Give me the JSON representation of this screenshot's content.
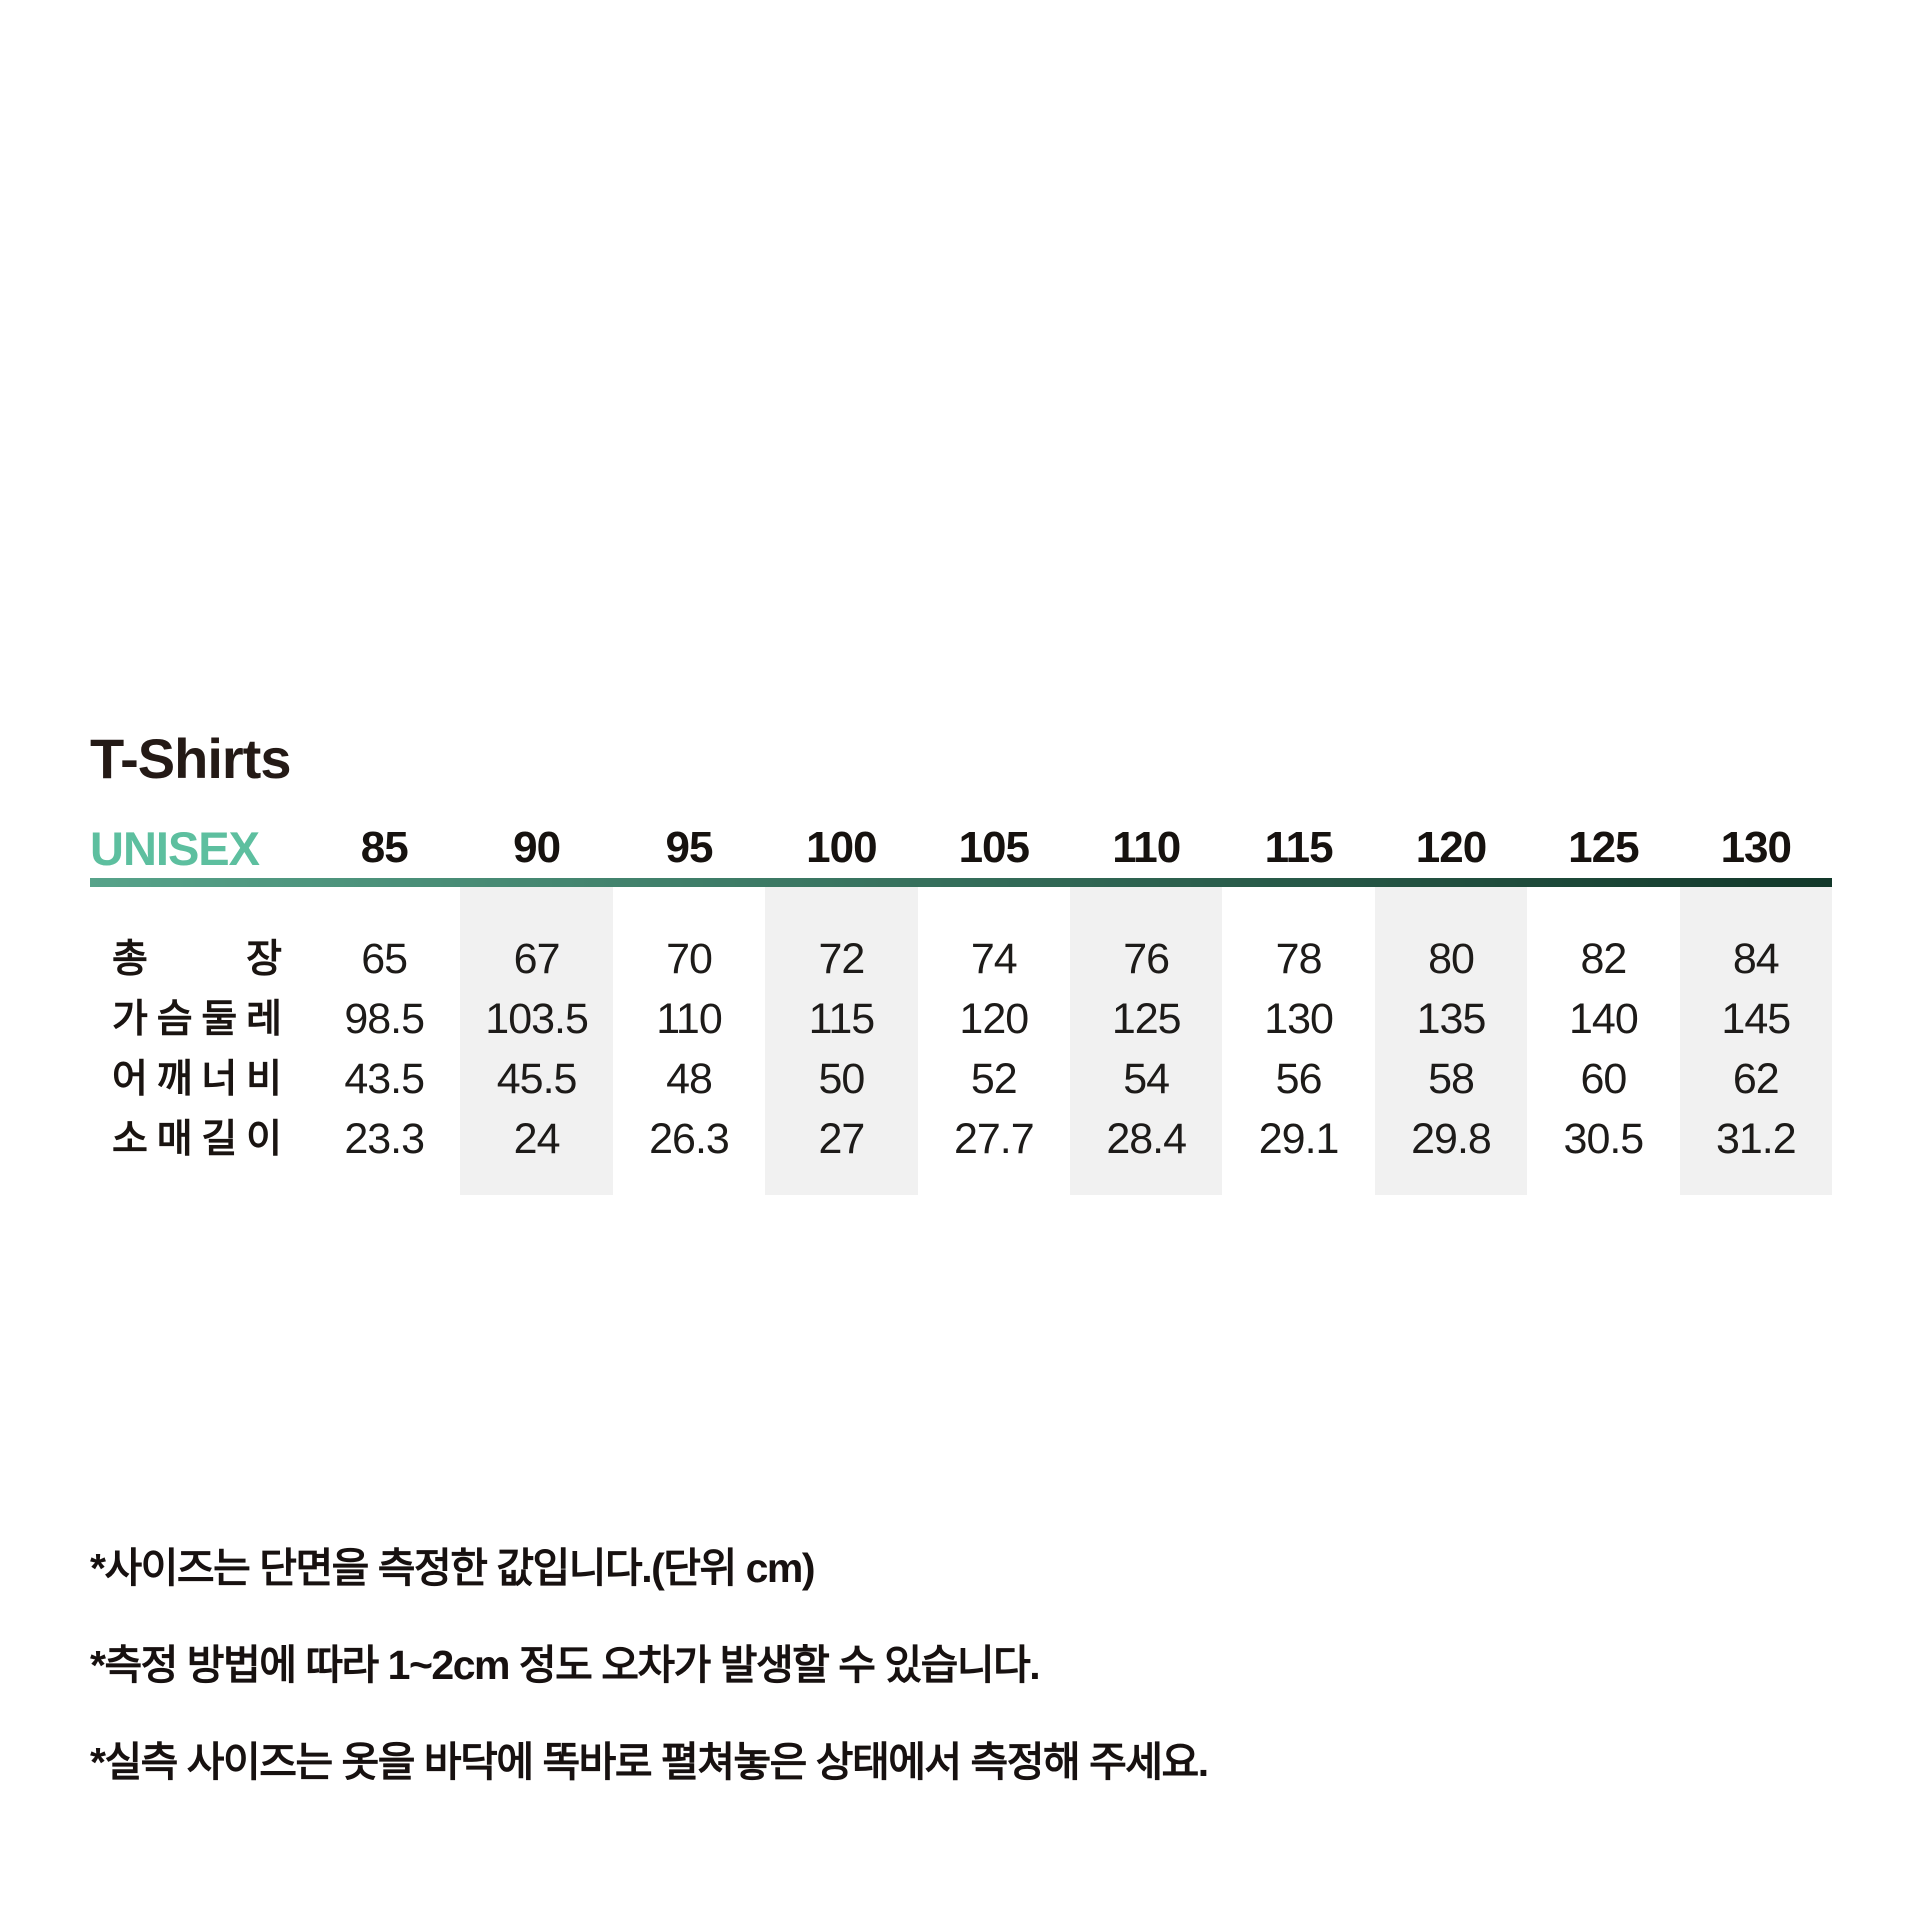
{
  "title": "T-Shirts",
  "table": {
    "gender_label": "UNISEX",
    "sizes": [
      "85",
      "90",
      "95",
      "100",
      "105",
      "110",
      "115",
      "120",
      "125",
      "130"
    ],
    "rows": [
      {
        "label": "총장",
        "values": [
          "65",
          "67",
          "70",
          "72",
          "74",
          "76",
          "78",
          "80",
          "82",
          "84"
        ]
      },
      {
        "label": "가슴둘레",
        "values": [
          "98.5",
          "103.5",
          "110",
          "115",
          "120",
          "125",
          "130",
          "135",
          "140",
          "145"
        ]
      },
      {
        "label": "어깨너비",
        "values": [
          "43.5",
          "45.5",
          "48",
          "50",
          "52",
          "54",
          "56",
          "58",
          "60",
          "62"
        ]
      },
      {
        "label": "소매길이",
        "values": [
          "23.3",
          "24",
          "26.3",
          "27",
          "27.7",
          "28.4",
          "29.1",
          "29.8",
          "30.5",
          "31.2"
        ]
      }
    ]
  },
  "notes": [
    "*사이즈는 단면을 측정한 값입니다.(단위 cm)",
    "*측정 방법에 따라 1~2cm 정도 오차가 발생할 수 있습니다.",
    "*실측 사이즈는 옷을 바닥에 똑바로 펼쳐놓은 상태에서 측정해 주세요."
  ],
  "chart_data": {
    "type": "table",
    "title": "T-Shirts UNISEX size chart (cm)",
    "columns": [
      "85",
      "90",
      "95",
      "100",
      "105",
      "110",
      "115",
      "120",
      "125",
      "130"
    ],
    "rows": [
      {
        "name": "총장 (total length)",
        "values": [
          65,
          67,
          70,
          72,
          74,
          76,
          78,
          80,
          82,
          84
        ]
      },
      {
        "name": "가슴둘레 (chest)",
        "values": [
          98.5,
          103.5,
          110,
          115,
          120,
          125,
          130,
          135,
          140,
          145
        ]
      },
      {
        "name": "어깨너비 (shoulder)",
        "values": [
          43.5,
          45.5,
          48,
          50,
          52,
          54,
          56,
          58,
          60,
          62
        ]
      },
      {
        "name": "소매길이 (sleeve)",
        "values": [
          23.3,
          24,
          26.3,
          27,
          27.7,
          28.4,
          29.1,
          29.8,
          30.5,
          31.2
        ]
      }
    ]
  },
  "colors": {
    "accent": "#5dbf9f",
    "divider_gradient_start": "#57a38a",
    "divider_gradient_end": "#12382a",
    "stripe": "#f1f1f1",
    "text": "#221a17"
  }
}
